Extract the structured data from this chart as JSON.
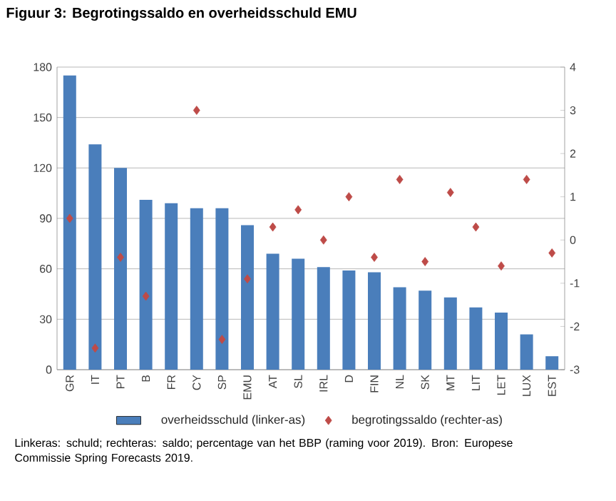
{
  "chart_data": {
    "type": "bar",
    "title": "Figuur 3: Begrotingssaldo en overheidsschuld EMU",
    "categories": [
      "GR",
      "IT",
      "PT",
      "B",
      "FR",
      "CY",
      "SP",
      "EMU",
      "AT",
      "SL",
      "IRL",
      "D",
      "FIN",
      "NL",
      "SK",
      "MT",
      "LIT",
      "LET",
      "LUX",
      "EST"
    ],
    "series": [
      {
        "name": "overheidsschuld (linker-as)",
        "color": "#4a7ebb",
        "values": [
          175,
          134,
          120,
          101,
          99,
          96,
          96,
          86,
          69,
          66,
          61,
          59,
          58,
          49,
          47,
          43,
          37,
          34,
          21,
          8
        ]
      },
      {
        "name": "begrotingssaldo (rechter-as)",
        "type": "scatter",
        "axis": "y2",
        "marker": "diamond",
        "color": "#be4b48",
        "values": [
          0.5,
          -2.5,
          -0.4,
          -1.3,
          null,
          3.0,
          -2.3,
          -0.9,
          0.3,
          0.7,
          0.0,
          1.0,
          -0.4,
          1.4,
          -0.5,
          1.1,
          0.3,
          -0.6,
          1.4,
          -0.3
        ]
      }
    ],
    "ylim": [
      0,
      180
    ],
    "yticks": [
      0,
      30,
      60,
      90,
      120,
      150,
      180
    ],
    "y2lim": [
      -3,
      4
    ],
    "y2ticks": [
      -3,
      -2,
      -1,
      0,
      1,
      2,
      3,
      4
    ],
    "grid": "y",
    "legend": "bottom",
    "annotations": [
      "Linkeras: schuld; rechteras: saldo; percentage van het BBP (raming voor 2019). Bron: Europese Commissie Spring Forecasts 2019."
    ]
  }
}
